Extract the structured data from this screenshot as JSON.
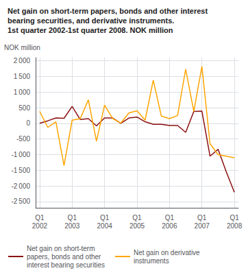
{
  "chart_data": {
    "type": "line",
    "title": "Net gain on short-term papers, bonds and other interest\nbearing securities, and derivative instruments.\n1st quarter 2002-1st quarter 2008. NOK million",
    "ylabel": "NOK million",
    "categories": [
      "Q1\n2002",
      null,
      null,
      null,
      "Q1\n2003",
      null,
      null,
      null,
      "Q1\n2004",
      null,
      null,
      null,
      "Q1\n2005",
      null,
      null,
      null,
      "Q1\n2006",
      null,
      null,
      null,
      "Q1\n2007",
      null,
      null,
      null,
      "Q1\n2008"
    ],
    "series": [
      {
        "name": "Net gain on short-term\npapers, bonds and other\ninterest bearing securities",
        "color": "#8B1010",
        "values": [
          0,
          80,
          170,
          160,
          540,
          120,
          150,
          -80,
          170,
          170,
          0,
          170,
          200,
          50,
          -30,
          -30,
          -70,
          -70,
          -290,
          380,
          390,
          -1050,
          -830,
          -1550,
          -2200
        ]
      },
      {
        "name": "Net gain on derivative\ninstruments",
        "color": "#FFA500",
        "values": [
          380,
          -130,
          50,
          -1350,
          100,
          150,
          750,
          -570,
          580,
          150,
          5,
          330,
          400,
          100,
          1380,
          230,
          150,
          250,
          1730,
          380,
          1820,
          -650,
          -1000,
          -1050,
          -1100
        ]
      }
    ],
    "ylim": [
      -2700,
      2100
    ],
    "yticks": [
      {
        "value": -2500,
        "label": "-2 500"
      },
      {
        "value": -2000,
        "label": "-2 000"
      },
      {
        "value": -1500,
        "label": "-1 500"
      },
      {
        "value": -1000,
        "label": "-1 000"
      },
      -500,
      0,
      500,
      {
        "value": 1000,
        "label": "1 000"
      },
      {
        "value": 1500,
        "label": "1 500"
      },
      {
        "value": 2000,
        "label": "2 000"
      }
    ],
    "grid": true,
    "legend": "lower left"
  }
}
